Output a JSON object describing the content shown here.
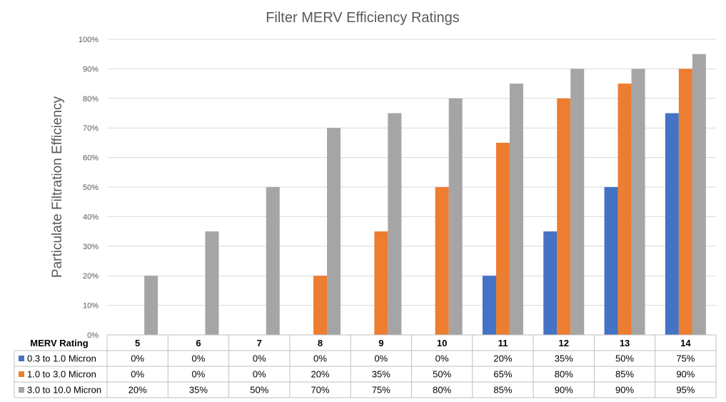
{
  "chart_data": {
    "type": "bar",
    "title": "Filter MERV Efficiency Ratings",
    "ylabel": "Particulate Filtration Efficiency",
    "xlabel": "",
    "table_header": "MERV Rating",
    "categories": [
      "5",
      "6",
      "7",
      "8",
      "9",
      "10",
      "11",
      "12",
      "13",
      "14"
    ],
    "ylim": [
      0,
      100
    ],
    "yticks": [
      "0%",
      "10%",
      "20%",
      "30%",
      "40%",
      "50%",
      "60%",
      "70%",
      "80%",
      "90%",
      "100%"
    ],
    "grid": true,
    "legend": "data-table-bottom",
    "series": [
      {
        "name": "0.3 to 1.0 Micron",
        "color": "#4472C4",
        "values": [
          0,
          0,
          0,
          0,
          0,
          0,
          20,
          35,
          50,
          75
        ],
        "labels": [
          "0%",
          "0%",
          "0%",
          "0%",
          "0%",
          "0%",
          "20%",
          "35%",
          "50%",
          "75%"
        ]
      },
      {
        "name": "1.0 to 3.0 Micron",
        "color": "#ED7D31",
        "values": [
          0,
          0,
          0,
          20,
          35,
          50,
          65,
          80,
          85,
          90
        ],
        "labels": [
          "0%",
          "0%",
          "0%",
          "20%",
          "35%",
          "50%",
          "65%",
          "80%",
          "85%",
          "90%"
        ]
      },
      {
        "name": "3.0 to 10.0 Micron",
        "color": "#A5A5A5",
        "values": [
          20,
          35,
          50,
          70,
          75,
          80,
          85,
          90,
          90,
          95
        ],
        "labels": [
          "20%",
          "35%",
          "50%",
          "70%",
          "75%",
          "80%",
          "85%",
          "90%",
          "90%",
          "95%"
        ]
      }
    ]
  }
}
